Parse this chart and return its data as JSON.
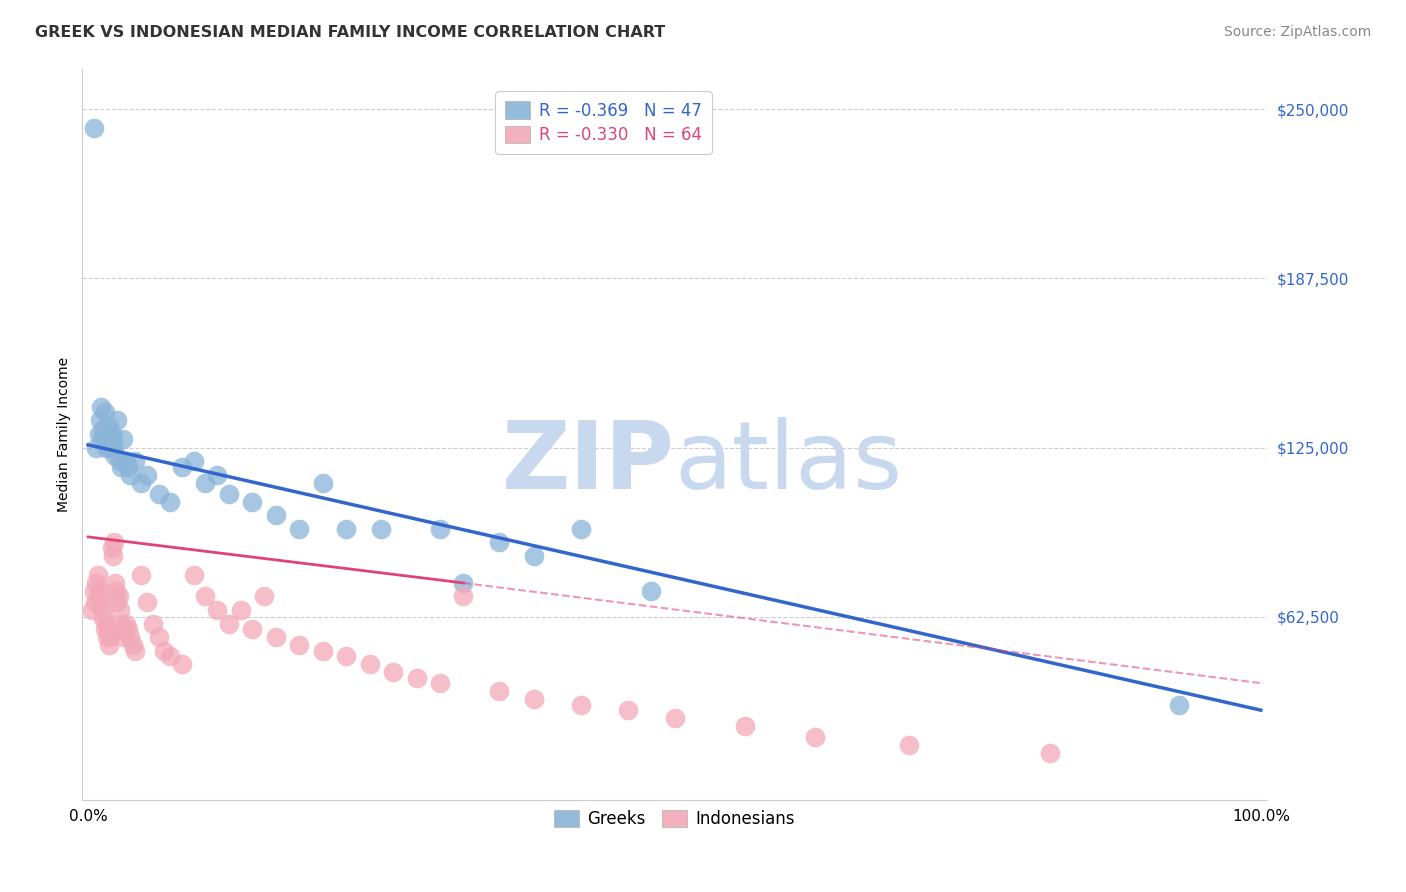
{
  "title": "GREEK VS INDONESIAN MEDIAN FAMILY INCOME CORRELATION CHART",
  "source": "Source: ZipAtlas.com",
  "ylabel": "Median Family Income",
  "ytick_labels": [
    "$62,500",
    "$125,000",
    "$187,500",
    "$250,000"
  ],
  "ytick_vals": [
    62500,
    125000,
    187500,
    250000
  ],
  "ylim": [
    -5000,
    265000
  ],
  "xlim": [
    -0.005,
    1.005
  ],
  "legend_entry1": "R = -0.369   N = 47",
  "legend_entry2": "R = -0.330   N = 64",
  "greek_color": "#8ab4d8",
  "indonesian_color": "#f2a8b8",
  "greek_trend_color": "#3366cc",
  "indonesian_trend_color": "#dd4477",
  "background_color": "#ffffff",
  "grid_color": "#cccccc",
  "watermark_zip_color": "#c8d8ee",
  "watermark_atlas_color": "#c8d8ee",
  "title_fontsize": 11.5,
  "source_fontsize": 10,
  "ytick_fontsize": 11,
  "xtick_fontsize": 11,
  "ylabel_fontsize": 10,
  "greek_x": [
    0.005,
    0.007,
    0.009,
    0.01,
    0.011,
    0.012,
    0.013,
    0.014,
    0.015,
    0.016,
    0.017,
    0.018,
    0.019,
    0.02,
    0.021,
    0.022,
    0.023,
    0.025,
    0.027,
    0.028,
    0.03,
    0.032,
    0.034,
    0.036,
    0.04,
    0.045,
    0.05,
    0.06,
    0.07,
    0.08,
    0.09,
    0.1,
    0.11,
    0.12,
    0.14,
    0.16,
    0.18,
    0.2,
    0.22,
    0.25,
    0.3,
    0.32,
    0.35,
    0.38,
    0.42,
    0.48,
    0.93
  ],
  "greek_y": [
    243000,
    125000,
    130000,
    135000,
    140000,
    128000,
    132000,
    138000,
    125000,
    127000,
    130000,
    133000,
    125000,
    130000,
    128000,
    125000,
    122000,
    135000,
    120000,
    118000,
    128000,
    120000,
    118000,
    115000,
    120000,
    112000,
    115000,
    108000,
    105000,
    118000,
    120000,
    112000,
    115000,
    108000,
    105000,
    100000,
    95000,
    112000,
    95000,
    95000,
    95000,
    75000,
    90000,
    85000,
    95000,
    72000,
    30000
  ],
  "indonesian_x": [
    0.003,
    0.005,
    0.006,
    0.007,
    0.008,
    0.009,
    0.01,
    0.011,
    0.012,
    0.013,
    0.014,
    0.015,
    0.016,
    0.017,
    0.018,
    0.019,
    0.02,
    0.021,
    0.022,
    0.023,
    0.024,
    0.025,
    0.026,
    0.027,
    0.028,
    0.029,
    0.03,
    0.032,
    0.034,
    0.036,
    0.038,
    0.04,
    0.045,
    0.05,
    0.055,
    0.06,
    0.065,
    0.07,
    0.08,
    0.09,
    0.1,
    0.11,
    0.12,
    0.13,
    0.14,
    0.15,
    0.16,
    0.18,
    0.2,
    0.22,
    0.24,
    0.26,
    0.28,
    0.3,
    0.32,
    0.35,
    0.38,
    0.42,
    0.46,
    0.5,
    0.56,
    0.62,
    0.7,
    0.82
  ],
  "indonesian_y": [
    65000,
    72000,
    68000,
    75000,
    78000,
    70000,
    72000,
    68000,
    65000,
    62000,
    58000,
    60000,
    55000,
    58000,
    52000,
    55000,
    88000,
    85000,
    90000,
    75000,
    72000,
    68000,
    70000,
    65000,
    60000,
    58000,
    55000,
    60000,
    58000,
    55000,
    52000,
    50000,
    78000,
    68000,
    60000,
    55000,
    50000,
    48000,
    45000,
    78000,
    70000,
    65000,
    60000,
    65000,
    58000,
    70000,
    55000,
    52000,
    50000,
    48000,
    45000,
    42000,
    40000,
    38000,
    70000,
    35000,
    32000,
    30000,
    28000,
    25000,
    22000,
    18000,
    15000,
    12000
  ],
  "greek_trend_x0": 0.0,
  "greek_trend_y0": 126000,
  "greek_trend_x1": 1.0,
  "greek_trend_y1": 28000,
  "indo_trend_x0": 0.0,
  "indo_trend_y0": 92000,
  "indo_trend_x1": 0.32,
  "indo_trend_y1": 75000,
  "indo_dash_x0": 0.32,
  "indo_dash_y0": 75000,
  "indo_dash_x1": 1.0,
  "indo_dash_y1": 38000
}
